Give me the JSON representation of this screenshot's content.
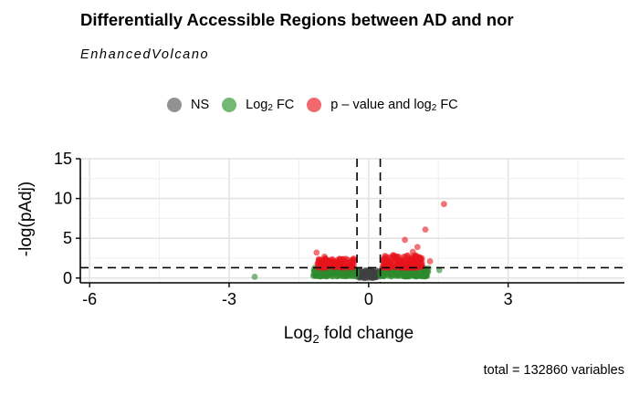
{
  "header": {
    "title": "Differentially Accessible Regions between AD and nor",
    "subtitle": "EnhancedVolcano"
  },
  "legend": {
    "items": [
      {
        "base": "NS",
        "sub": "",
        "tail": "",
        "color": "#7f7f7f"
      },
      {
        "base": "Log",
        "sub": "2",
        "tail": " FC",
        "color": "#5aab5a"
      },
      {
        "base": "p – value and log",
        "sub": "2",
        "tail": " FC",
        "color": "#ee4d54"
      }
    ]
  },
  "caption": "total = 132860 variables",
  "chart_data": {
    "type": "scatter",
    "title": "Differentially Accessible Regions between AD and nor",
    "subtitle": "EnhancedVolcano",
    "xlabel_base": "Log",
    "xlabel_sub": "2",
    "xlabel_tail": " fold change",
    "ylabel": "-log(pAdj)",
    "xlim": [
      -6.2,
      5.5
    ],
    "ylim": [
      -0.6,
      15
    ],
    "x_ticks": [
      -6,
      -3,
      0,
      3
    ],
    "y_ticks": [
      0,
      5,
      10,
      15
    ],
    "fc_cutoff": 0.25,
    "p_cutoff_line": 1.3,
    "grid": true,
    "legend_position": "top",
    "colors": {
      "ns": "#404040",
      "fc": "#2e8b2e",
      "both": "#e8141c"
    },
    "highlight_points": [
      {
        "x": 1.62,
        "y": 9.3,
        "group": "both"
      },
      {
        "x": 1.22,
        "y": 6.1,
        "group": "both"
      },
      {
        "x": 0.78,
        "y": 4.8,
        "group": "both"
      },
      {
        "x": 1.05,
        "y": 3.9,
        "group": "both"
      },
      {
        "x": 0.95,
        "y": 3.3,
        "group": "both"
      },
      {
        "x": 1.32,
        "y": 2.1,
        "group": "both"
      },
      {
        "x": -1.12,
        "y": 3.2,
        "group": "both"
      },
      {
        "x": -0.95,
        "y": 2.7,
        "group": "both"
      },
      {
        "x": 1.52,
        "y": 1.0,
        "group": "fc"
      },
      {
        "x": -2.45,
        "y": 0.15,
        "group": "fc"
      }
    ],
    "bulk_clusters": [
      {
        "group": "ns",
        "x_range": [
          -0.25,
          0.25
        ],
        "y_range": [
          0,
          1.0
        ],
        "count": 90
      },
      {
        "group": "fc",
        "x_range": [
          -1.2,
          -0.25
        ],
        "y_range": [
          0.2,
          1.3
        ],
        "count": 150
      },
      {
        "group": "fc",
        "x_range": [
          0.25,
          1.3
        ],
        "y_range": [
          0.2,
          1.3
        ],
        "count": 170
      },
      {
        "group": "both",
        "x_range": [
          -1.1,
          -0.3
        ],
        "y_range": [
          1.3,
          2.5
        ],
        "count": 140
      },
      {
        "group": "both",
        "x_range": [
          0.3,
          1.15
        ],
        "y_range": [
          1.3,
          2.9
        ],
        "count": 190
      }
    ]
  }
}
